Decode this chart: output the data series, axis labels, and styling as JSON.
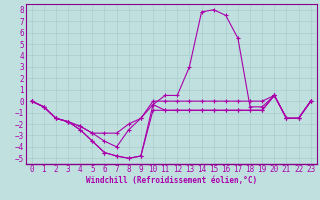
{
  "xlabel": "Windchill (Refroidissement éolien,°C)",
  "background_color": "#c0e0e0",
  "grid_color": "#a8cccc",
  "line_color": "#aa00aa",
  "spine_color": "#880088",
  "xlim": [
    -0.5,
    23.5
  ],
  "ylim": [
    -5.5,
    8.5
  ],
  "xticks": [
    0,
    1,
    2,
    3,
    4,
    5,
    6,
    7,
    8,
    9,
    10,
    11,
    12,
    13,
    14,
    15,
    16,
    17,
    18,
    19,
    20,
    21,
    22,
    23
  ],
  "yticks": [
    -5,
    -4,
    -3,
    -2,
    -1,
    0,
    1,
    2,
    3,
    4,
    5,
    6,
    7,
    8
  ],
  "series": [
    [
      0.0,
      -0.5,
      -1.5,
      -1.8,
      -2.5,
      -3.5,
      -4.5,
      -4.8,
      -5.0,
      -4.8,
      -0.3,
      0.5,
      0.5,
      3.0,
      7.8,
      8.0,
      7.5,
      5.5,
      -0.5,
      -0.5,
      0.5,
      -1.5,
      -1.5,
      0.0
    ],
    [
      0.0,
      -0.5,
      -1.5,
      -1.8,
      -2.5,
      -3.5,
      -4.5,
      -4.8,
      -5.0,
      -4.8,
      -0.8,
      -0.8,
      -0.8,
      -0.8,
      -0.8,
      -0.8,
      -0.8,
      -0.8,
      -0.8,
      -0.8,
      0.5,
      -1.5,
      -1.5,
      0.0
    ],
    [
      0.0,
      -0.5,
      -1.5,
      -1.8,
      -2.2,
      -2.8,
      -3.5,
      -4.0,
      -2.5,
      -1.5,
      -0.3,
      -0.8,
      -0.8,
      -0.8,
      -0.8,
      -0.8,
      -0.8,
      -0.8,
      -0.8,
      -0.8,
      0.5,
      -1.5,
      -1.5,
      0.0
    ],
    [
      0.0,
      -0.5,
      -1.5,
      -1.8,
      -2.2,
      -2.8,
      -2.8,
      -2.8,
      -2.0,
      -1.5,
      0.0,
      0.0,
      0.0,
      0.0,
      0.0,
      0.0,
      0.0,
      0.0,
      0.0,
      0.0,
      0.5,
      -1.5,
      -1.5,
      0.0
    ]
  ],
  "tick_fontsize": 5.5,
  "xlabel_fontsize": 5.5
}
